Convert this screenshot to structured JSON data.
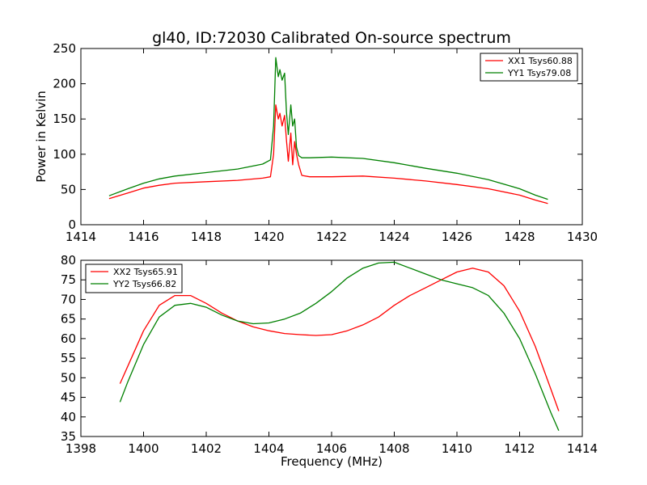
{
  "figure_title": "gl40, ID:72030 Calibrated On-source spectrum",
  "chart_data": [
    {
      "type": "line",
      "title": "gl40, ID:72030 Calibrated On-source spectrum",
      "xlabel": "",
      "ylabel": "Power in Kelvin",
      "xlim": [
        1414,
        1430
      ],
      "ylim": [
        0,
        250
      ],
      "xticks": [
        1414,
        1416,
        1418,
        1420,
        1422,
        1424,
        1426,
        1428,
        1430
      ],
      "yticks": [
        0,
        50,
        100,
        150,
        200,
        250
      ],
      "grid": false,
      "legend_position": "top-right",
      "series": [
        {
          "name": "XX1 Tsys60.88",
          "color": "#ff0000",
          "x": [
            1414.9,
            1415.5,
            1416.0,
            1416.5,
            1417.0,
            1418.0,
            1419.0,
            1419.8,
            1420.05,
            1420.15,
            1420.22,
            1420.3,
            1420.35,
            1420.42,
            1420.5,
            1420.56,
            1420.62,
            1420.7,
            1420.76,
            1420.82,
            1420.88,
            1420.95,
            1421.05,
            1421.3,
            1422.0,
            1423.0,
            1424.0,
            1425.0,
            1426.0,
            1427.0,
            1428.0,
            1428.5,
            1428.9
          ],
          "y": [
            37,
            45,
            52,
            56,
            59,
            61,
            63,
            66,
            68,
            100,
            170,
            150,
            158,
            140,
            155,
            120,
            90,
            130,
            85,
            118,
            100,
            85,
            70,
            68,
            68,
            69,
            66,
            62,
            57,
            51,
            42,
            35,
            30
          ]
        },
        {
          "name": "YY1 Tsys79.08",
          "color": "#008000",
          "x": [
            1414.9,
            1415.5,
            1416.0,
            1416.5,
            1417.0,
            1418.0,
            1419.0,
            1419.8,
            1420.05,
            1420.15,
            1420.22,
            1420.3,
            1420.35,
            1420.42,
            1420.5,
            1420.56,
            1420.62,
            1420.7,
            1420.76,
            1420.82,
            1420.88,
            1420.95,
            1421.05,
            1421.3,
            1422.0,
            1423.0,
            1424.0,
            1425.0,
            1426.0,
            1427.0,
            1428.0,
            1428.5,
            1428.9
          ],
          "y": [
            41,
            51,
            59,
            65,
            69,
            74,
            79,
            86,
            92,
            140,
            237,
            210,
            220,
            205,
            215,
            160,
            128,
            170,
            140,
            150,
            110,
            98,
            95,
            95,
            96,
            94,
            88,
            80,
            73,
            64,
            51,
            42,
            36
          ]
        }
      ]
    },
    {
      "type": "line",
      "title": "",
      "xlabel": "Frequency (MHz)",
      "ylabel": "",
      "xlim": [
        1398,
        1414
      ],
      "ylim": [
        35,
        80
      ],
      "xticks": [
        1398,
        1400,
        1402,
        1404,
        1406,
        1408,
        1410,
        1412,
        1414
      ],
      "yticks": [
        35,
        40,
        45,
        50,
        55,
        60,
        65,
        70,
        75,
        80
      ],
      "grid": false,
      "legend_position": "top-left",
      "series": [
        {
          "name": "XX2 Tsys65.91",
          "color": "#ff0000",
          "x": [
            1399.25,
            1399.5,
            1400.0,
            1400.5,
            1401.0,
            1401.5,
            1402.0,
            1402.5,
            1403.0,
            1403.5,
            1404.0,
            1404.5,
            1405.0,
            1405.5,
            1406.0,
            1406.5,
            1407.0,
            1407.5,
            1408.0,
            1408.5,
            1409.0,
            1409.5,
            1410.0,
            1410.5,
            1411.0,
            1411.5,
            1412.0,
            1412.5,
            1413.0,
            1413.25
          ],
          "y": [
            48.5,
            53,
            62,
            68.5,
            71,
            71,
            69,
            66.5,
            64.5,
            63,
            62,
            61.3,
            61,
            60.8,
            61,
            62,
            63.5,
            65.5,
            68.5,
            71,
            73,
            75,
            77,
            78,
            77,
            73.5,
            67,
            58,
            47,
            41.5
          ]
        },
        {
          "name": "YY2 Tsys66.82",
          "color": "#008000",
          "x": [
            1399.25,
            1399.5,
            1400.0,
            1400.5,
            1401.0,
            1401.5,
            1402.0,
            1402.5,
            1403.0,
            1403.5,
            1404.0,
            1404.5,
            1405.0,
            1405.5,
            1406.0,
            1406.5,
            1407.0,
            1407.5,
            1408.0,
            1408.5,
            1409.0,
            1409.5,
            1410.0,
            1410.5,
            1411.0,
            1411.5,
            1412.0,
            1412.5,
            1413.0,
            1413.25
          ],
          "y": [
            43.8,
            49,
            58.5,
            65.5,
            68.5,
            69,
            68,
            66,
            64.5,
            63.8,
            64,
            65,
            66.5,
            69,
            72,
            75.5,
            78,
            79.3,
            79.5,
            78,
            76.5,
            75,
            74,
            73,
            71,
            66.5,
            60,
            51,
            41,
            36.5
          ]
        }
      ]
    }
  ]
}
